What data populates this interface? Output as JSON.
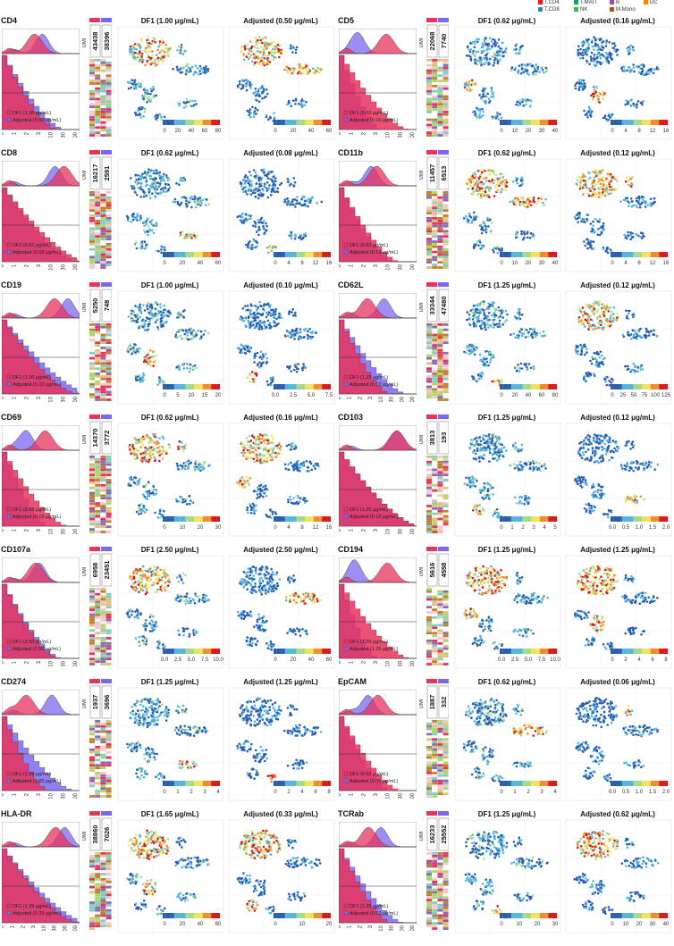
{
  "legend": [
    {
      "label": "T.CD4",
      "color": "#e41a1c"
    },
    {
      "label": "T.MAIT",
      "color": "#1b9e77"
    },
    {
      "label": "B",
      "color": "#984ea3"
    },
    {
      "label": "DC",
      "color": "#ff7f00"
    },
    {
      "label": "T.CD8",
      "color": "#377eb8"
    },
    {
      "label": "NK",
      "color": "#4daf4a"
    },
    {
      "label": "M.Mono",
      "color": "#a65628"
    }
  ],
  "colors": {
    "df1": "#e8335d",
    "adjusted": "#7b68ee"
  },
  "chart_data": [
    {
      "type": "histogram+scatter",
      "marker": "CD4",
      "df1_label": "DF1 (1.00 μg/mL)",
      "adj_label": "Adjusted (0.50 μg/mL)",
      "umi": [
        "43438",
        "38396"
      ],
      "tsne_a_title": "DF1 (1.00 μg/mL)",
      "tsne_b_title": "Adjusted (0.50 μg/mL)",
      "scale_a": [
        "0",
        "20",
        "40",
        "60",
        "80"
      ],
      "scale_b": [
        "0",
        "20",
        "40",
        "60"
      ],
      "xticks": [
        "0",
        "1",
        "2",
        "3",
        "10",
        "30",
        "100"
      ]
    },
    {
      "type": "histogram+scatter",
      "marker": "CD5",
      "df1_label": "DF1 (0.62 μg/mL)",
      "adj_label": "Adjusted (0.16 μg/mL)",
      "umi": [
        "22068",
        "7740"
      ],
      "tsne_a_title": "DF1 (0.62 μg/mL)",
      "tsne_b_title": "Adjusted (0.16 μg/mL)",
      "scale_a": [
        "0",
        "10",
        "20",
        "30",
        "40"
      ],
      "scale_b": [
        "0",
        "4",
        "8",
        "12",
        "16"
      ],
      "xticks": [
        "0",
        "1",
        "2",
        "3",
        "10",
        "30",
        "100"
      ]
    },
    {
      "type": "histogram+scatter",
      "marker": "CD8",
      "df1_label": "DF1 (0.62 μg/mL)",
      "adj_label": "Adjusted (0.08 μg/mL)",
      "umi": [
        "16217",
        "2591"
      ],
      "tsne_a_title": "DF1 (0.62 μg/mL)",
      "tsne_b_title": "Adjusted (0.08 μg/mL)",
      "scale_a": [
        "0",
        "20",
        "40",
        "60"
      ],
      "scale_b": [
        "0",
        "4",
        "8",
        "12",
        "16"
      ],
      "xticks": [
        "0",
        "1",
        "2",
        "3",
        "10",
        "30",
        "100"
      ]
    },
    {
      "type": "histogram+scatter",
      "marker": "CD11b",
      "df1_label": "DF1 (0.62 μg/mL)",
      "adj_label": "Adjusted (0.12 μg/mL)",
      "umi": [
        "11457",
        "6513"
      ],
      "tsne_a_title": "DF1 (0.62 μg/mL)",
      "tsne_b_title": "Adjusted (0.12 μg/mL)",
      "scale_a": [
        "0",
        "10",
        "20",
        "30",
        "40"
      ],
      "scale_b": [
        "0",
        "4",
        "8",
        "12",
        "16"
      ],
      "xticks": [
        "0",
        "1",
        "2",
        "3",
        "10",
        "30",
        "100"
      ]
    },
    {
      "type": "histogram+scatter",
      "marker": "CD19",
      "df1_label": "DF1 (1.00 μg/mL)",
      "adj_label": "Adjusted (0.10 μg/mL)",
      "umi": [
        "5250",
        "748"
      ],
      "tsne_a_title": "DF1 (1.00 μg/mL)",
      "tsne_b_title": "Adjusted (0.10 μg/mL)",
      "scale_a": [
        "0",
        "5",
        "10",
        "15",
        "20"
      ],
      "scale_b": [
        "0.0",
        "2.5",
        "5.0",
        "7.5"
      ],
      "xticks": [
        "0",
        "1",
        "2",
        "3",
        "10",
        "30",
        "100"
      ]
    },
    {
      "type": "histogram+scatter",
      "marker": "CD62L",
      "df1_label": "DF1 (1.25 μg/mL)",
      "adj_label": "Adjusted (0.12 μg/mL)",
      "umi": [
        "33344",
        "47480"
      ],
      "tsne_a_title": "DF1 (1.25 μg/mL)",
      "tsne_b_title": "Adjusted (0.12 μg/mL)",
      "scale_a": [
        "0",
        "20",
        "40",
        "60",
        "80"
      ],
      "scale_b": [
        "0",
        "25",
        "50",
        "75",
        "100",
        "125"
      ],
      "xticks": [
        "0",
        "1",
        "2",
        "3",
        "10",
        "30",
        "100",
        "300"
      ]
    },
    {
      "type": "histogram+scatter",
      "marker": "CD69",
      "df1_label": "DF1 (0.62 μg/mL)",
      "adj_label": "Adjusted (0.16 μg/mL)",
      "umi": [
        "14370",
        "3772"
      ],
      "tsne_a_title": "DF1 (0.62 μg/mL)",
      "tsne_b_title": "Adjusted (0.16 μg/mL)",
      "scale_a": [
        "0",
        "10",
        "20",
        "30"
      ],
      "scale_b": [
        "0",
        "4",
        "8",
        "12",
        "16"
      ],
      "xticks": [
        "0",
        "1",
        "2",
        "3",
        "10",
        "30",
        "100"
      ]
    },
    {
      "type": "histogram+scatter",
      "marker": "CD103",
      "df1_label": "DF1 (1.25 μg/mL)",
      "adj_label": "Adjusted (0.12 μg/mL)",
      "umi": [
        "3813",
        "193"
      ],
      "tsne_a_title": "DF1 (1.25 μg/mL)",
      "tsne_b_title": "Adjusted (0.12 μg/mL)",
      "scale_a": [
        "0",
        "1",
        "2",
        "3",
        "4",
        "5"
      ],
      "scale_b": [
        "0.0",
        "0.5",
        "1.0",
        "1.5",
        "2.0"
      ],
      "xticks": [
        "0",
        "1",
        "2",
        "3",
        "10",
        "30",
        "100"
      ]
    },
    {
      "type": "histogram+scatter",
      "marker": "CD107a",
      "df1_label": "DF1 (2.50 μg/mL)",
      "adj_label": "Adjusted (2.50 μg/mL)",
      "umi": [
        "6958",
        "23451"
      ],
      "tsne_a_title": "DF1 (2.50 μg/mL)",
      "tsne_b_title": "Adjusted (2.50 μg/mL)",
      "scale_a": [
        "0.0",
        "2.5",
        "5.0",
        "7.5",
        "10.0"
      ],
      "scale_b": [
        "0",
        "20",
        "40",
        "60"
      ],
      "xticks": [
        "0",
        "1",
        "2",
        "3",
        "10",
        "30",
        "100"
      ]
    },
    {
      "type": "histogram+scatter",
      "marker": "CD194",
      "df1_label": "DF1 (1.25 μg/mL)",
      "adj_label": "Adjusted (1.25 μg/mL)",
      "umi": [
        "5616",
        "4558"
      ],
      "tsne_a_title": "DF1 (1.25 μg/mL)",
      "tsne_b_title": "Adjusted (1.25 μg/mL)",
      "scale_a": [
        "0.0",
        "2.5",
        "5.0",
        "7.5",
        "10.0"
      ],
      "scale_b": [
        "0",
        "2",
        "4",
        "6",
        "8"
      ],
      "xticks": [
        "0",
        "1",
        "2",
        "3",
        "10",
        "30",
        "100"
      ]
    },
    {
      "type": "histogram+scatter",
      "marker": "CD274",
      "df1_label": "DF1 (1.25 μg/mL)",
      "adj_label": "Adjusted (1.25 μg/mL)",
      "umi": [
        "1937",
        "3696"
      ],
      "tsne_a_title": "DF1 (1.25 μg/mL)",
      "tsne_b_title": "Adjusted (1.25 μg/mL)",
      "scale_a": [
        "0",
        "1",
        "2",
        "3",
        "4"
      ],
      "scale_b": [
        "0",
        "2",
        "4",
        "6",
        "8"
      ],
      "xticks": [
        "0",
        "1",
        "2",
        "3",
        "10",
        "30",
        "100"
      ]
    },
    {
      "type": "histogram+scatter",
      "marker": "EpCAM",
      "df1_label": "DF1 (0.62 μg/mL)",
      "adj_label": "Adjusted (0.06 μg/mL)",
      "umi": [
        "1887",
        "332"
      ],
      "tsne_a_title": "DF1 (0.62 μg/mL)",
      "tsne_b_title": "Adjusted (0.06 μg/mL)",
      "scale_a": [
        "0",
        "1",
        "2",
        "3",
        "4"
      ],
      "scale_b": [
        "0.0",
        "0.5",
        "1.0",
        "1.5",
        "2.0"
      ],
      "xticks": [
        "0",
        "1",
        "2",
        "3",
        "10",
        "30",
        "100"
      ]
    },
    {
      "type": "histogram+scatter",
      "marker": "HLA-DR",
      "df1_label": "DF1 (1.65 μg/mL)",
      "adj_label": "Adjusted (0.33 μg/mL)",
      "umi": [
        "38860",
        "7026"
      ],
      "tsne_a_title": "DF1 (1.65 μg/mL)",
      "tsne_b_title": "Adjusted (0.33 μg/mL)",
      "scale_a": [
        "0",
        "20",
        "40",
        "60"
      ],
      "scale_b": [
        "0",
        "10",
        "20"
      ],
      "xticks": [
        "0",
        "1",
        "2",
        "3",
        "10",
        "30",
        "100",
        "300"
      ]
    },
    {
      "type": "histogram+scatter",
      "marker": "TCRab",
      "df1_label": "DF1 (1.25 μg/mL)",
      "adj_label": "Adjusted (0.62 μg/mL)",
      "umi": [
        "16233",
        "25552"
      ],
      "tsne_a_title": "DF1 (1.25 μg/mL)",
      "tsne_b_title": "Adjusted (0.62 μg/mL)",
      "scale_a": [
        "0",
        "10",
        "20",
        "30"
      ],
      "scale_b": [
        "0",
        "10",
        "20",
        "30",
        "40"
      ],
      "xticks": [
        "0",
        "1",
        "2",
        "3",
        "10",
        "30",
        "100",
        "300"
      ]
    }
  ],
  "umi_axis_label": "UMI"
}
